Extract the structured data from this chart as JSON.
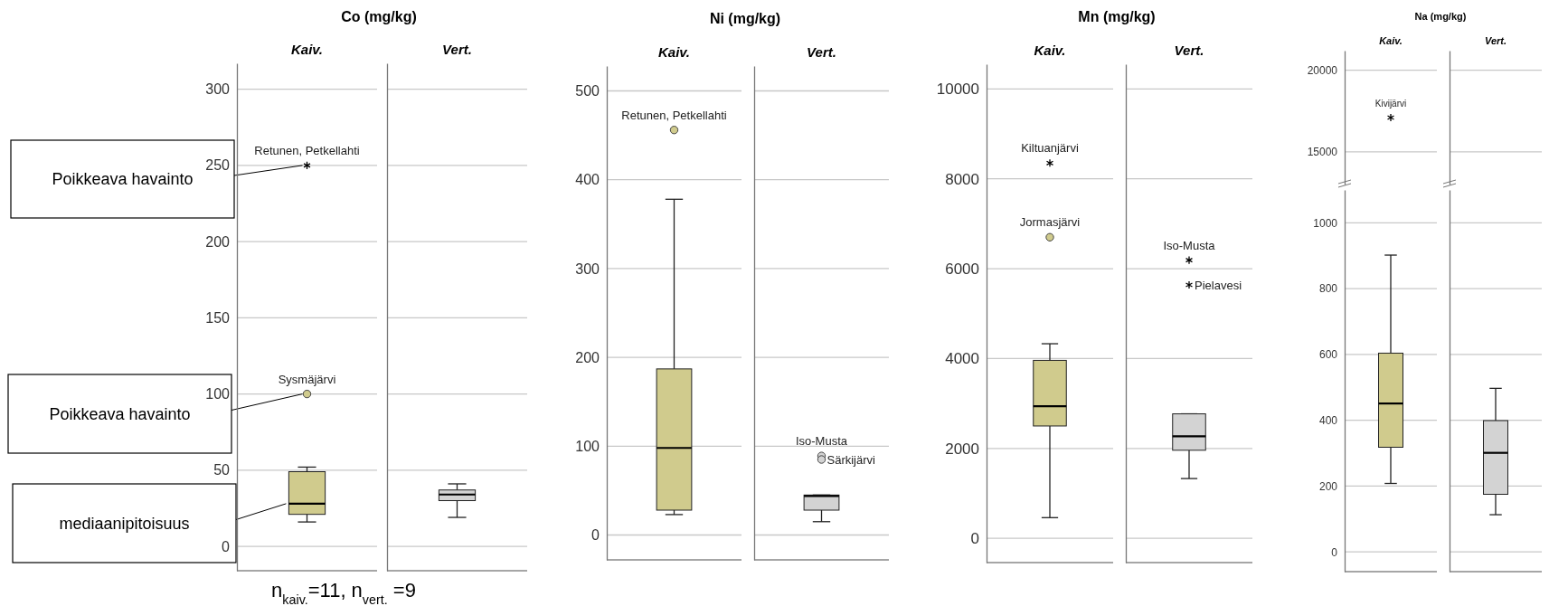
{
  "chart_data": [
    {
      "type": "box",
      "title": "Co (mg/kg)",
      "categories": [
        "Kaiv."
      ],
      "colors": [
        "#d0cb8d"
      ],
      "boxes": [
        {
          "low": 16,
          "q1": 21,
          "median": 28,
          "q3": 49,
          "high": 52
        }
      ],
      "series": [
        {
          "type": "scatter",
          "x": [
            "Kaiv."
          ],
          "values": [
            250
          ],
          "marker": "cross",
          "color": "#000000"
        },
        {
          "type": "scatter",
          "x": [
            "Kaiv."
          ],
          "values": [
            100
          ],
          "marker": "circle",
          "color": "#d0cb8d"
        }
      ],
      "ylim": [
        -16,
        317
      ],
      "yticks": [
        0,
        50,
        100,
        150,
        200,
        250,
        300
      ],
      "grid": "y",
      "annotations": [
        "Poikkeava havainto",
        "Poikkeava havainto",
        "mediaanipitoisuus",
        {
          "text": "Retunen, Petkellahti",
          "x": "Kaiv.",
          "y": 250
        },
        {
          "text": "Sysmäjärvi",
          "x": "Kaiv.",
          "y": 100
        },
        "n$_{kaiv.}$=11, n$_{vert.}$ =9"
      ]
    },
    {
      "type": "box",
      "categories": [
        "Vert."
      ],
      "colors": [
        "#d3d3d3"
      ],
      "boxes": [
        {
          "low": 19,
          "q1": 30,
          "median": 34,
          "q3": 37,
          "high": 41
        }
      ],
      "ylim": [
        -16,
        317
      ],
      "yticks": [
        0,
        50,
        100,
        150,
        200,
        250,
        300
      ],
      "grid": "y",
      "tick_labels": "x"
    },
    {
      "type": "box",
      "title": "Ni (mg/kg)",
      "categories": [
        "Kaiv."
      ],
      "colors": [
        "#d0cb8d"
      ],
      "boxes": [
        {
          "low": 23,
          "q1": 28,
          "median": 98,
          "q3": 187,
          "high": 378
        }
      ],
      "series": [
        {
          "type": "scatter",
          "x": [
            "Kaiv."
          ],
          "values": [
            456
          ],
          "marker": "circle",
          "color": "#d0cb8d"
        }
      ],
      "ylim": [
        -28,
        528
      ],
      "yticks": [
        0,
        100,
        200,
        300,
        400,
        500
      ],
      "grid": "y",
      "annotations": [
        {
          "text": "Retunen, Petkellahti",
          "x": "Kaiv.",
          "y": 456
        }
      ]
    },
    {
      "type": "box",
      "categories": [
        "Vert."
      ],
      "colors": [
        "#d3d3d3"
      ],
      "boxes": [
        {
          "low": 15,
          "q1": 28,
          "median": 44,
          "q3": 45,
          "high": 45
        }
      ],
      "series": [
        {
          "type": "scatter",
          "x": [
            "Vert.",
            "Vert."
          ],
          "values": [
            89,
            85
          ],
          "marker": "circle",
          "color": "#d3d3d3"
        }
      ],
      "ylim": [
        -28,
        528
      ],
      "yticks": [
        0,
        100,
        200,
        300,
        400,
        500
      ],
      "grid": "y",
      "tick_labels": "x",
      "annotations": [
        {
          "text": "Iso-Musta",
          "x": "Vert.",
          "y": 89
        },
        {
          "text": "Särkijärvi",
          "x": "Vert.",
          "y": 85
        }
      ]
    },
    {
      "type": "box",
      "title": "Mn (mg/kg)",
      "categories": [
        "Kaiv."
      ],
      "colors": [
        "#d0cb8d"
      ],
      "boxes": [
        {
          "low": 460,
          "q1": 2500,
          "median": 2940,
          "q3": 3960,
          "high": 4330
        }
      ],
      "series": [
        {
          "type": "scatter",
          "x": [
            "Kaiv."
          ],
          "values": [
            8350
          ],
          "marker": "cross",
          "color": "#000000"
        },
        {
          "type": "scatter",
          "x": [
            "Kaiv."
          ],
          "values": [
            6700
          ],
          "marker": "circle",
          "color": "#d0cb8d"
        }
      ],
      "ylim": [
        -540,
        10550
      ],
      "yticks": [
        0,
        2000,
        4000,
        6000,
        8000,
        10000
      ],
      "grid": "y",
      "annotations": [
        {
          "text": "Kiltuanjärvi",
          "x": "Kaiv.",
          "y": 8350
        },
        {
          "text": "Jormasjärvi",
          "x": "Kaiv.",
          "y": 6700
        }
      ]
    },
    {
      "type": "box",
      "categories": [
        "Vert."
      ],
      "colors": [
        "#d3d3d3"
      ],
      "boxes": [
        {
          "low": 1330,
          "q1": 1960,
          "median": 2270,
          "q3": 2770,
          "high": 2770
        }
      ],
      "series": [
        {
          "type": "scatter",
          "x": [
            "Vert.",
            "Vert."
          ],
          "values": [
            6190,
            5640
          ],
          "marker": "cross",
          "color": "#000000"
        }
      ],
      "ylim": [
        -540,
        10550
      ],
      "yticks": [
        0,
        2000,
        4000,
        6000,
        8000,
        10000
      ],
      "grid": "y",
      "tick_labels": "x",
      "annotations": [
        {
          "text": "Iso-Musta",
          "x": "Vert.",
          "y": 6190
        },
        {
          "text": "Pielavesi",
          "x": "Vert.",
          "y": 5640
        }
      ]
    },
    {
      "type": "scatter",
      "title": "Na (mg/kg)",
      "categories": [
        "Kaiv."
      ],
      "series": [
        {
          "type": "scatter",
          "x": [
            "Kaiv."
          ],
          "values": [
            17100
          ],
          "marker": "cross",
          "color": "#000000"
        }
      ],
      "ylim": [
        13000,
        21200
      ],
      "yticks": [
        15000,
        20000
      ],
      "grid": "y",
      "annotations": [
        {
          "text": "Kivijärvi",
          "x": "Kaiv.",
          "y": 17100
        }
      ]
    },
    {
      "type": "scatter",
      "categories": [
        "Vert."
      ],
      "ylim": [
        13000,
        21200
      ],
      "yticks": [
        15000,
        20000
      ],
      "grid": "y",
      "tick_labels": "x"
    },
    {
      "type": "box",
      "categories": [
        "Kaiv."
      ],
      "tick_labels": "y",
      "colors": [
        "#d0cb8d"
      ],
      "boxes": [
        {
          "low": 208,
          "q1": 318,
          "median": 451,
          "q3": 604,
          "high": 902
        }
      ],
      "ylim": [
        -60,
        1100
      ],
      "yticks": [
        0,
        200,
        400,
        600,
        800,
        1000
      ],
      "grid": "y"
    },
    {
      "type": "box",
      "categories": [
        "Vert."
      ],
      "tick_labels": false,
      "colors": [
        "#d3d3d3"
      ],
      "boxes": [
        {
          "low": 113,
          "q1": 175,
          "median": 301,
          "q3": 399,
          "high": 497
        }
      ],
      "ylim": [
        -60,
        1100
      ],
      "yticks": [
        0,
        200,
        400,
        600,
        800,
        1000
      ],
      "grid": "y"
    }
  ]
}
